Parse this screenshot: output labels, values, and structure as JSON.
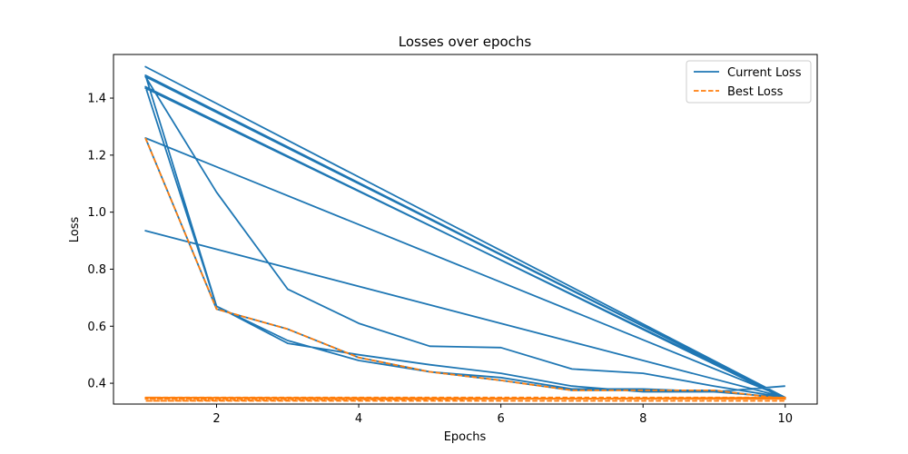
{
  "chart_data": {
    "type": "line",
    "title": "Losses over epochs",
    "xlabel": "Epochs",
    "ylabel": "Loss",
    "xlim": [
      0.55,
      10.45
    ],
    "ylim": [
      0.327,
      1.553
    ],
    "xticks": [
      2,
      4,
      6,
      8,
      10
    ],
    "yticks": [
      0.4,
      0.6,
      0.8,
      1.0,
      1.2,
      1.4
    ],
    "ytick_labels": [
      "0.4",
      "0.6",
      "0.8",
      "1.0",
      "1.2",
      "1.4"
    ],
    "grid": false,
    "legend_position": "top-right",
    "legend": [
      {
        "label": "Current Loss",
        "color": "#1f77b4",
        "style": "solid"
      },
      {
        "label": "Best Loss",
        "color": "#ff7f0e",
        "style": "dashed"
      }
    ],
    "series": [
      {
        "name": "Current Loss",
        "color": "#1f77b4",
        "style": "solid",
        "x": [
          1,
          2,
          3,
          4,
          5,
          6,
          7,
          8,
          9,
          10,
          1,
          10,
          1,
          10,
          1,
          10,
          1,
          2,
          3,
          4,
          5,
          6,
          7,
          8,
          9,
          10,
          1,
          10,
          1,
          2,
          3,
          4,
          5,
          6,
          7,
          8,
          9,
          10,
          1,
          2,
          3,
          4,
          5,
          6,
          7,
          8,
          9,
          10
        ],
        "y": [
          1.48,
          0.67,
          0.55,
          0.48,
          0.44,
          0.42,
          0.38,
          0.38,
          0.37,
          0.35,
          1.51,
          0.35,
          1.48,
          0.35,
          1.435,
          0.35,
          1.475,
          1.07,
          0.73,
          0.61,
          0.53,
          0.525,
          0.45,
          0.435,
          0.39,
          0.35,
          0.935,
          0.35,
          1.26,
          0.66,
          0.59,
          0.49,
          0.44,
          0.41,
          0.375,
          0.375,
          0.375,
          0.345,
          1.44,
          0.67,
          0.54,
          0.5,
          0.465,
          0.435,
          0.39,
          0.37,
          0.37,
          0.39
        ]
      },
      {
        "name": "Best Loss",
        "color": "#ff7f0e",
        "style": "dashed",
        "x": [
          1,
          2,
          3,
          4,
          5,
          6,
          7,
          8,
          9,
          10,
          1,
          10,
          1,
          10,
          1,
          10
        ],
        "y": [
          1.26,
          0.66,
          0.59,
          0.49,
          0.44,
          0.41,
          0.375,
          0.375,
          0.375,
          0.345,
          0.345,
          0.345,
          0.35,
          0.35,
          0.338,
          0.338
        ]
      }
    ]
  }
}
